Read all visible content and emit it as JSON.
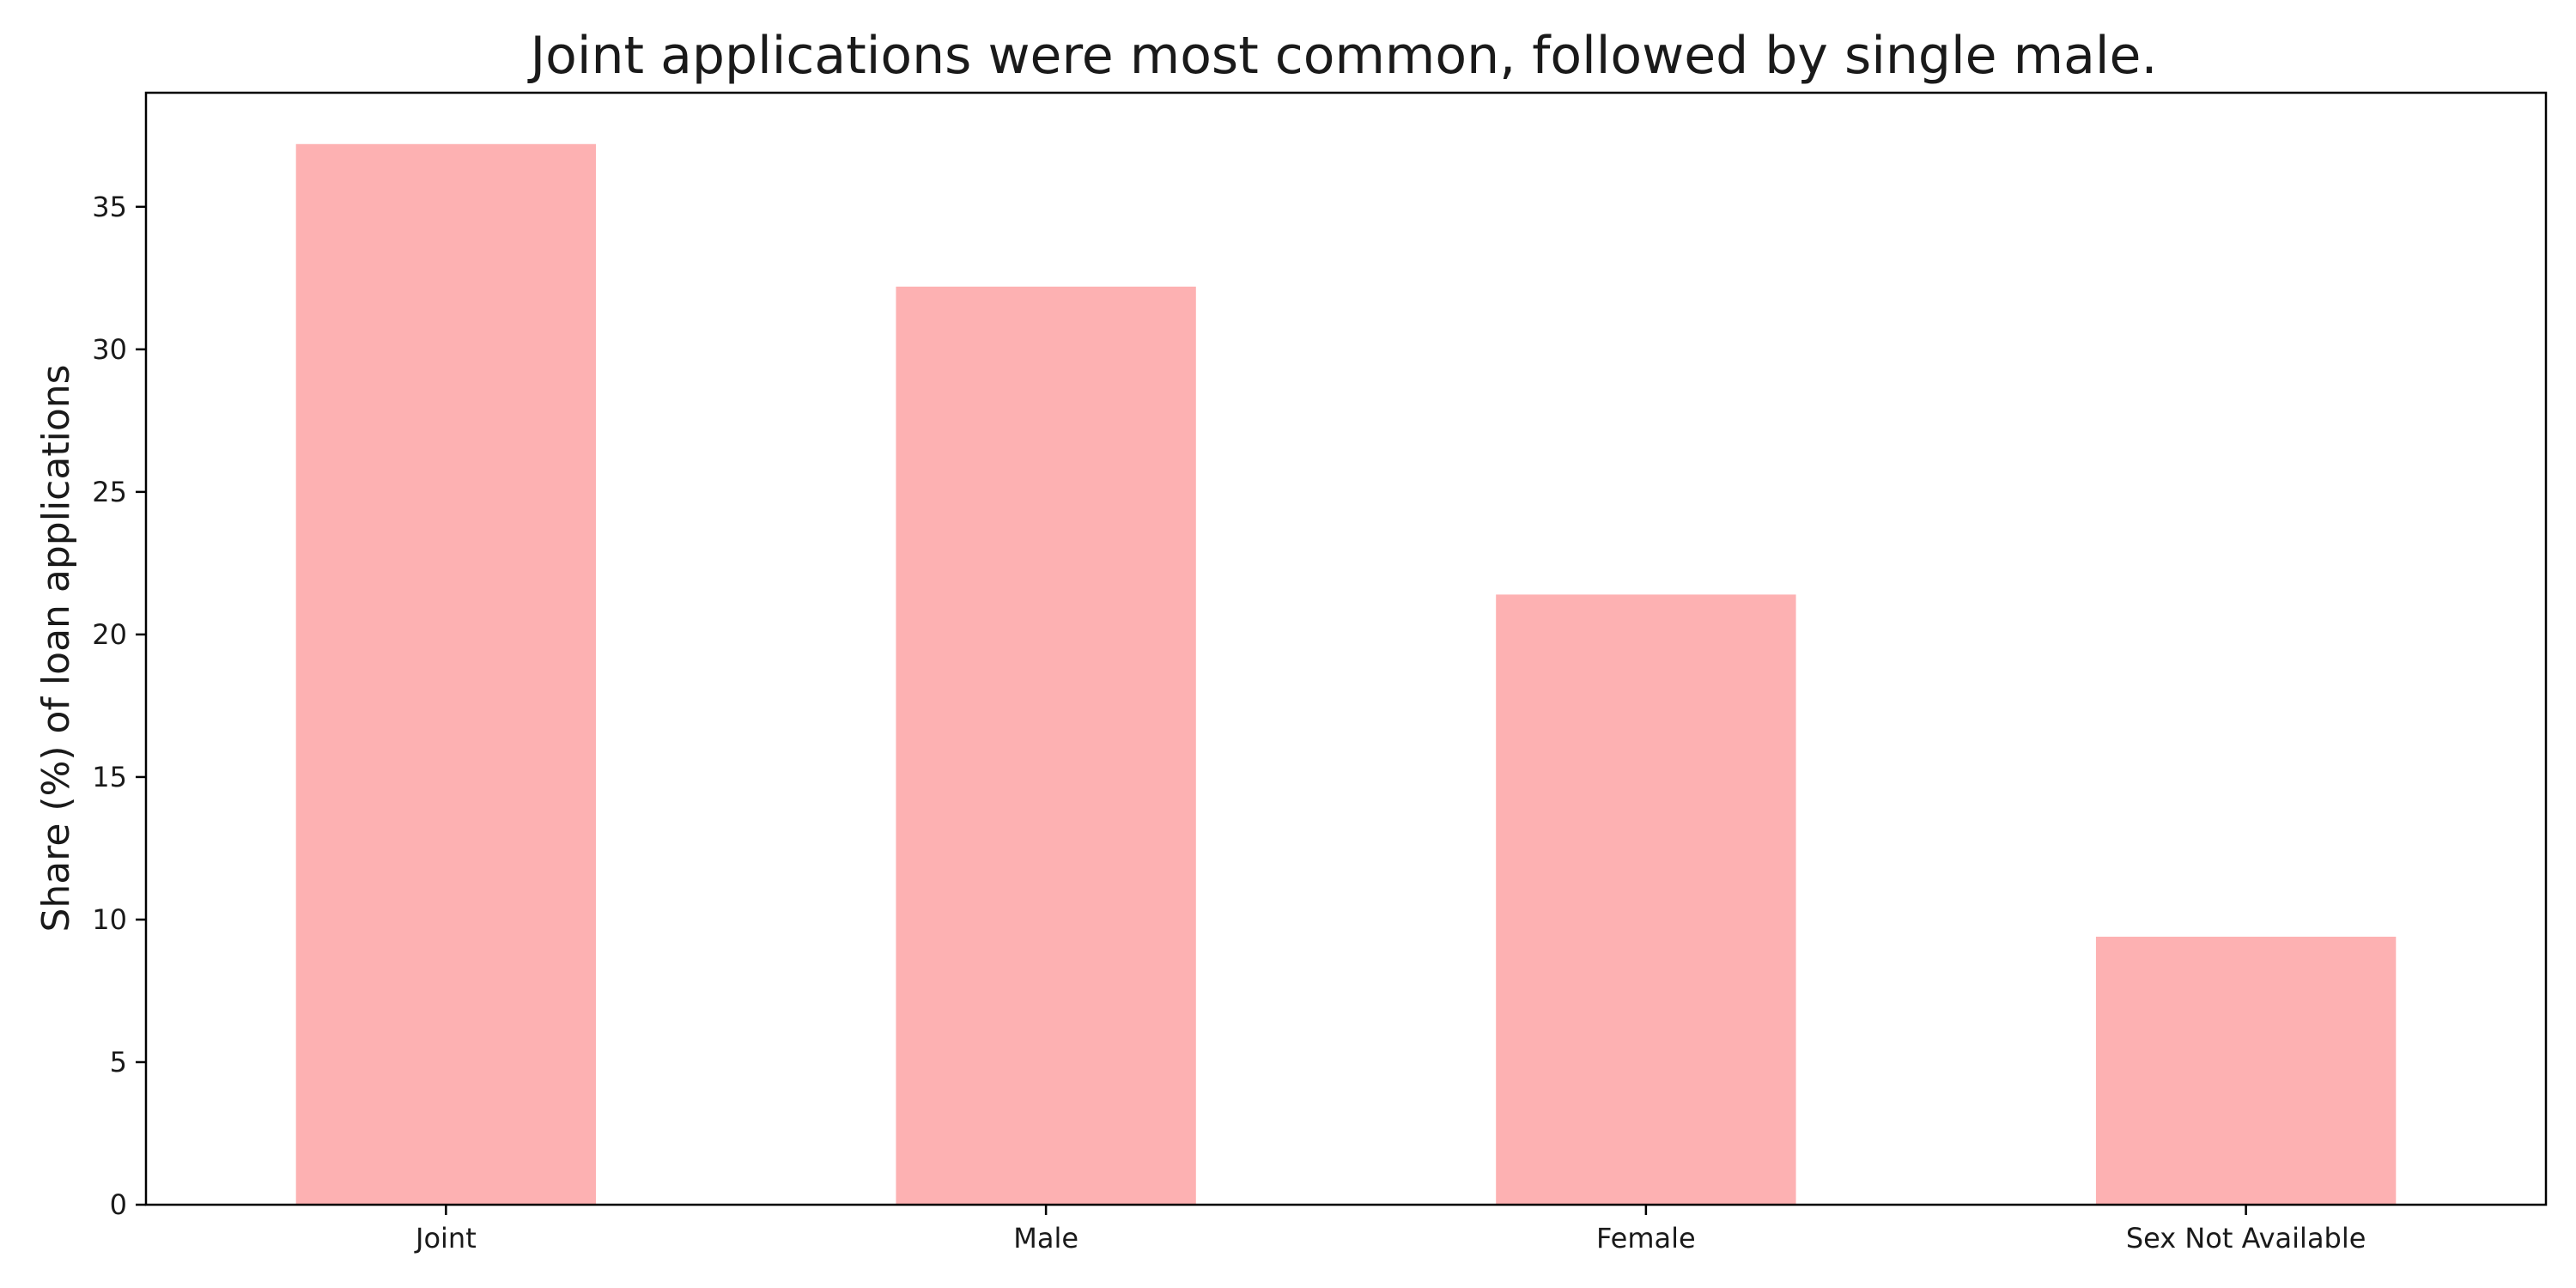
{
  "chart_data": {
    "type": "bar",
    "title": "Joint applications were most common, followed by single male.",
    "xlabel": "",
    "ylabel": "Share (%) of loan applications",
    "categories": [
      "Joint",
      "Male",
      "Female",
      "Sex Not Available"
    ],
    "values": [
      37.2,
      32.2,
      21.4,
      9.4
    ],
    "ylim": [
      0,
      39
    ],
    "yticks": [
      0,
      5,
      10,
      15,
      20,
      25,
      30,
      35
    ],
    "bar_color": "#fdb1b2",
    "grid": false,
    "legend": "none"
  }
}
